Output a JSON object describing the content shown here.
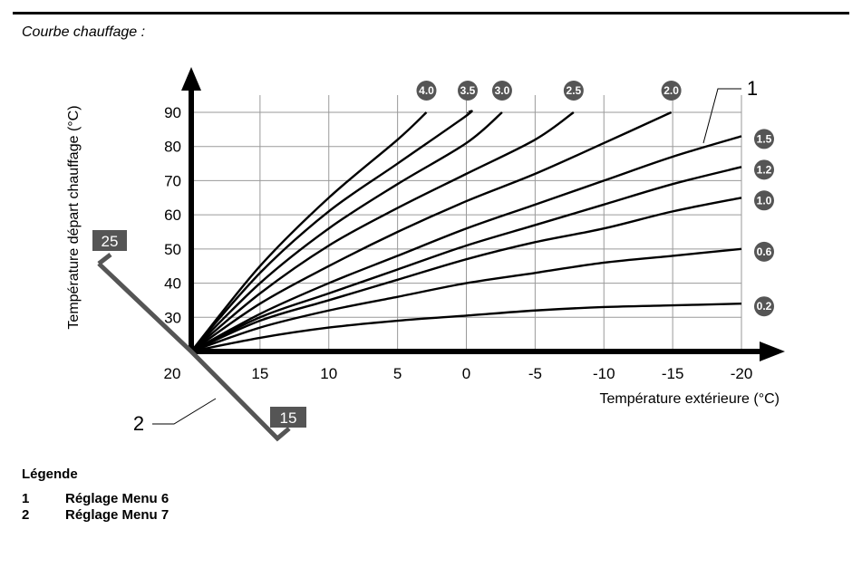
{
  "caption": "Courbe chauffage :",
  "chart_data": {
    "type": "line",
    "ylabel": "Température départ chauffage (°C)",
    "xlabel": "Température extérieure (°C)",
    "y_ticks": [
      "90",
      "80",
      "70",
      "60",
      "50",
      "40",
      "30"
    ],
    "y_origin_label": "20",
    "x_ticks": [
      "15",
      "10",
      "5",
      "0",
      "-5",
      "-10",
      "-15",
      "-20"
    ],
    "x_domain": [
      20,
      -20
    ],
    "y_domain": [
      20,
      90
    ],
    "series": [
      {
        "name": "4.0",
        "x": [
          20,
          15,
          10,
          5,
          2.9
        ],
        "y": [
          20,
          45,
          65,
          82,
          90
        ]
      },
      {
        "name": "3.5",
        "x": [
          20,
          15,
          10,
          5,
          0,
          -0.1
        ],
        "y": [
          20,
          43,
          61,
          75,
          89,
          90
        ]
      },
      {
        "name": "3.0",
        "x": [
          20,
          15,
          10,
          5,
          0,
          -2.6
        ],
        "y": [
          20,
          40,
          56,
          69,
          81,
          90
        ]
      },
      {
        "name": "2.5",
        "x": [
          20,
          15,
          10,
          5,
          0,
          -5,
          -7.8
        ],
        "y": [
          20,
          37,
          51,
          62,
          72,
          82,
          90
        ]
      },
      {
        "name": "2.0",
        "x": [
          20,
          15,
          10,
          5,
          0,
          -5,
          -10,
          -14.9
        ],
        "y": [
          20,
          34,
          45,
          55,
          64,
          72,
          81,
          90
        ]
      },
      {
        "name": "1.5",
        "x": [
          20,
          15,
          10,
          5,
          0,
          -5,
          -10,
          -15,
          -20
        ],
        "y": [
          20,
          31,
          40,
          48,
          56,
          63,
          70,
          77,
          83
        ]
      },
      {
        "name": "1.2",
        "x": [
          20,
          15,
          10,
          5,
          0,
          -5,
          -10,
          -15,
          -20
        ],
        "y": [
          20,
          30,
          37,
          44,
          51,
          57,
          63,
          69,
          74
        ]
      },
      {
        "name": "1.0",
        "x": [
          20,
          15,
          10,
          5,
          0,
          -5,
          -10,
          -15,
          -20
        ],
        "y": [
          20,
          29,
          35,
          41,
          47,
          52,
          56,
          61,
          65
        ]
      },
      {
        "name": "0.6",
        "x": [
          20,
          15,
          10,
          5,
          0,
          -5,
          -10,
          -15,
          -20
        ],
        "y": [
          20,
          27,
          32,
          36,
          40,
          43,
          46,
          48,
          50
        ]
      },
      {
        "name": "0.2",
        "x": [
          20,
          15,
          10,
          5,
          0,
          -5,
          -10,
          -15,
          -20
        ],
        "y": [
          20,
          24,
          27,
          29,
          30.5,
          32,
          33,
          33.5,
          34
        ]
      }
    ],
    "callout_1": "1",
    "callout_2": "2",
    "room_temp_high": "25",
    "room_temp_low": "15",
    "grid": true
  },
  "legend": {
    "title": "Légende",
    "items": [
      {
        "num": "1",
        "text": "Réglage Menu 6"
      },
      {
        "num": "2",
        "text": "Réglage Menu 7"
      }
    ]
  }
}
